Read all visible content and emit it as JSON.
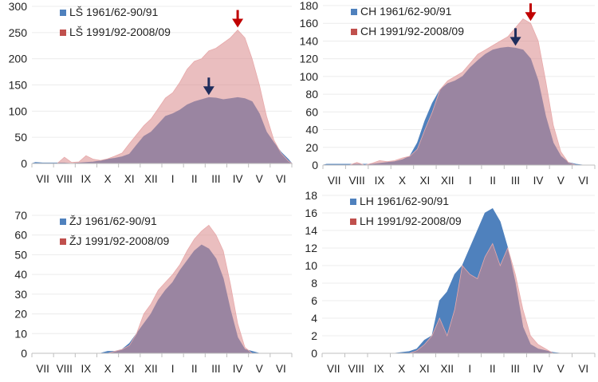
{
  "chart_data": [
    {
      "type": "area",
      "x_ticks": [
        "VII",
        "VIII",
        "IX",
        "X",
        "XI",
        "XII",
        "I",
        "II",
        "III",
        "IV",
        "V",
        "VI"
      ],
      "ylim": [
        0,
        300
      ],
      "y_ticks": [
        0,
        50,
        100,
        150,
        200,
        250,
        300
      ],
      "grid": true,
      "legend_position": "top-left",
      "series": [
        {
          "name": "LŠ 1961/62-90/91",
          "color": "#4f81bd",
          "values": [
            2,
            1,
            1,
            1,
            1,
            0,
            1,
            2,
            3,
            5,
            8,
            10,
            13,
            18,
            35,
            52,
            60,
            75,
            90,
            95,
            102,
            112,
            118,
            122,
            126,
            125,
            122,
            124,
            126,
            124,
            118,
            95,
            60,
            40,
            22,
            8
          ]
        },
        {
          "name": "LŠ 1991/92-2008/09",
          "color": "#c0504d",
          "values": [
            0,
            0,
            0,
            0,
            12,
            2,
            3,
            15,
            8,
            6,
            9,
            14,
            20,
            38,
            55,
            72,
            85,
            105,
            125,
            135,
            155,
            180,
            195,
            200,
            215,
            220,
            230,
            240,
            255,
            240,
            200,
            150,
            90,
            45,
            20,
            5
          ]
        }
      ],
      "arrows": [
        {
          "series": 0,
          "index": 24,
          "color": "#1f2d5c"
        },
        {
          "series": 1,
          "index": 28,
          "color": "#c00000"
        }
      ]
    },
    {
      "type": "area",
      "x_ticks": [
        "VII",
        "VIII",
        "IX",
        "X",
        "XI",
        "XII",
        "I",
        "II",
        "III",
        "IV",
        "V",
        "VI"
      ],
      "ylim": [
        0,
        180
      ],
      "y_ticks": [
        0,
        20,
        40,
        60,
        80,
        100,
        120,
        140,
        160,
        180
      ],
      "grid": true,
      "legend_position": "top-left",
      "series": [
        {
          "name": "CH 1961/62-90/91",
          "color": "#4f81bd",
          "values": [
            1,
            1,
            1,
            1,
            1,
            1,
            1,
            2,
            3,
            4,
            6,
            10,
            25,
            50,
            70,
            85,
            92,
            95,
            100,
            110,
            118,
            125,
            130,
            132,
            133,
            132,
            130,
            120,
            95,
            55,
            25,
            10,
            3,
            1,
            0,
            0
          ]
        },
        {
          "name": "CH 1991/92-2008/09",
          "color": "#c0504d",
          "values": [
            0,
            0,
            0,
            0,
            3,
            0,
            2,
            5,
            4,
            5,
            8,
            10,
            18,
            40,
            60,
            85,
            95,
            100,
            105,
            115,
            125,
            130,
            135,
            140,
            145,
            155,
            165,
            160,
            140,
            95,
            45,
            15,
            3,
            0,
            0,
            0
          ]
        }
      ],
      "arrows": [
        {
          "series": 0,
          "index": 25,
          "color": "#1f2d5c"
        },
        {
          "series": 1,
          "index": 27,
          "color": "#c00000"
        }
      ]
    },
    {
      "type": "area",
      "x_ticks": [
        "VII",
        "VIII",
        "IX",
        "X",
        "XI",
        "XII",
        "I",
        "II",
        "III",
        "IV",
        "V",
        "VI"
      ],
      "ylim": [
        0,
        70
      ],
      "y_ticks": [
        0,
        10,
        20,
        30,
        40,
        50,
        60,
        70
      ],
      "grid": true,
      "legend_position": "top-left",
      "series": [
        {
          "name": "ŽJ 1961/62-90/91",
          "color": "#4f81bd",
          "values": [
            0,
            0,
            0,
            0,
            0,
            0,
            0,
            0,
            0,
            0,
            1,
            1,
            2,
            5,
            10,
            15,
            20,
            27,
            32,
            36,
            42,
            47,
            52,
            55,
            53,
            48,
            38,
            22,
            8,
            2,
            1,
            0,
            0,
            0,
            0,
            0
          ]
        },
        {
          "name": "ŽJ 1991/92-2008/09",
          "color": "#c0504d",
          "values": [
            0,
            0,
            0,
            0,
            0,
            0,
            0,
            0,
            0,
            0,
            0,
            1,
            2,
            4,
            10,
            20,
            25,
            32,
            36,
            40,
            45,
            52,
            58,
            62,
            65,
            60,
            52,
            35,
            15,
            3,
            0,
            0,
            0,
            0,
            0,
            0
          ]
        }
      ],
      "arrows": []
    },
    {
      "type": "area",
      "x_ticks": [
        "VII",
        "VIII",
        "IX",
        "X",
        "XI",
        "XII",
        "I",
        "II",
        "III",
        "IV",
        "V",
        "VI"
      ],
      "ylim": [
        0,
        18
      ],
      "y_ticks": [
        0,
        2,
        4,
        6,
        8,
        10,
        12,
        14,
        16,
        18
      ],
      "grid": true,
      "legend_position": "top-left",
      "series": [
        {
          "name": "LH 1961/62-90/91",
          "color": "#4f81bd",
          "values": [
            0,
            0,
            0,
            0,
            0,
            0,
            0,
            0,
            0,
            0,
            0.1,
            0.2,
            0.5,
            1.5,
            2,
            6,
            7,
            9,
            10,
            12,
            14,
            16,
            16.5,
            15,
            12,
            8,
            3,
            1,
            0.5,
            0.3,
            0.1,
            0,
            0,
            0,
            0,
            0
          ]
        },
        {
          "name": "LH 1991/92-2008/09",
          "color": "#c0504d",
          "values": [
            0,
            0,
            0,
            0,
            0,
            0,
            0,
            0,
            0,
            0,
            0,
            0,
            0.3,
            1,
            2,
            4,
            2,
            5,
            10,
            9,
            8.5,
            11,
            12.5,
            10,
            12,
            9,
            5,
            2,
            1,
            0.5,
            0,
            0,
            0,
            0,
            0,
            0
          ]
        }
      ],
      "arrows": []
    }
  ]
}
